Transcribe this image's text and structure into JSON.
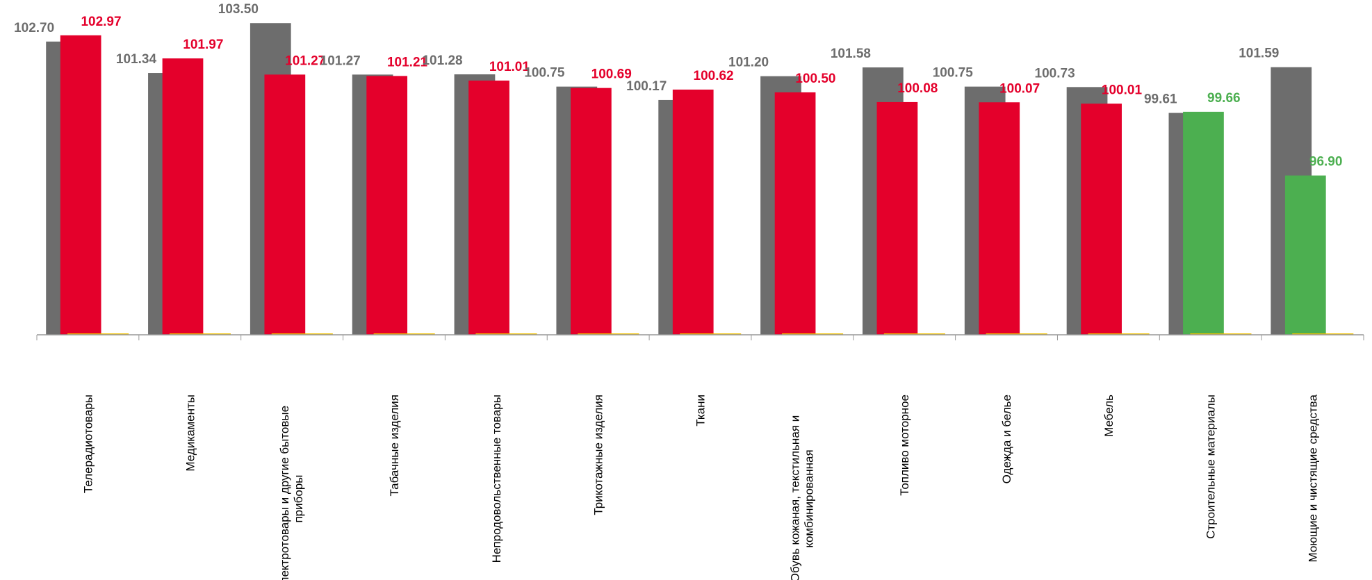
{
  "chart_data": {
    "type": "bar",
    "categories": [
      "Телерадиотовары",
      "Медикаменты",
      "Электротовары и другие бытовые приборы",
      "Табачные изделия",
      "Непродовольственные товары",
      "Трикотажные изделия",
      "Ткани",
      "Обувь кожаная, текстильная и комбинированная",
      "Топливо моторное",
      "Одежда и белье",
      "Мебель",
      "Строительные материалы",
      "Моющие и чистящие средства"
    ],
    "series": [
      {
        "color": "#6d6d6d",
        "values": [
          102.7,
          101.34,
          103.5,
          101.27,
          101.28,
          100.75,
          100.17,
          101.2,
          101.58,
          100.75,
          100.73,
          99.61,
          101.59
        ],
        "value_labels": [
          "102.70",
          "101.34",
          "103.50",
          "101.27",
          "101.28",
          "100.75",
          "100.17",
          "101.20",
          "101.58",
          "100.75",
          "100.73",
          "99.61",
          "101.59"
        ]
      },
      {
        "colors": [
          "#e4002b",
          "#e4002b",
          "#e4002b",
          "#e4002b",
          "#e4002b",
          "#e4002b",
          "#e4002b",
          "#e4002b",
          "#e4002b",
          "#e4002b",
          "#e4002b",
          "#4caf50",
          "#4caf50"
        ],
        "values": [
          102.97,
          101.97,
          101.27,
          101.21,
          101.01,
          100.69,
          100.62,
          100.5,
          100.08,
          100.07,
          100.01,
          99.66,
          96.9
        ],
        "value_labels": [
          "102.97",
          "101.97",
          "101.27",
          "101.21",
          "101.01",
          "100.69",
          "100.62",
          "100.50",
          "100.08",
          "100.07",
          "100.01",
          "99.66",
          "96.90"
        ]
      }
    ],
    "ylim": [
      90,
      104.5
    ]
  }
}
